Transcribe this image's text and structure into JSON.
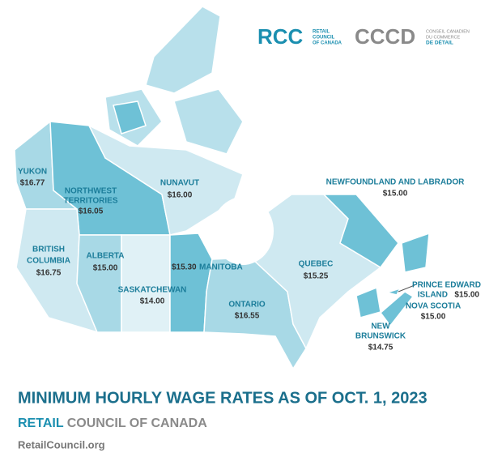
{
  "logos": {
    "rcc": {
      "mark": "RCC",
      "lines": [
        "RETAIL",
        "COUNCIL",
        "OF CANADA"
      ]
    },
    "cccd": {
      "mark": "CCCD",
      "lines": [
        "CONSEIL CANADIEN",
        "DU COMMERCE",
        "DE DÉTAIL"
      ]
    }
  },
  "provinces": [
    {
      "name": [
        "YUKON"
      ],
      "wage": "$16.77"
    },
    {
      "name": [
        "NORTHWEST",
        "TERRITORIES"
      ],
      "wage": "$16.05"
    },
    {
      "name": [
        "NUNAVUT"
      ],
      "wage": "$16.00"
    },
    {
      "name": [
        "NEWFOUNDLAND AND LABRADOR"
      ],
      "wage": "$15.00"
    },
    {
      "name": [
        "BRITISH",
        "COLUMBIA"
      ],
      "wage": "$16.75"
    },
    {
      "name": [
        "ALBERTA"
      ],
      "wage": "$15.00"
    },
    {
      "name": [
        "MANITOBA"
      ],
      "wage": "$15.30"
    },
    {
      "name": [
        "SASKATCHEWAN"
      ],
      "wage": "$14.00"
    },
    {
      "name": [
        "QUEBEC"
      ],
      "wage": "$15.25"
    },
    {
      "name": [
        "ONTARIO"
      ],
      "wage": "$16.55"
    },
    {
      "name": [
        "PRINCE EDWARD",
        "ISLAND"
      ],
      "wage": "$15.00"
    },
    {
      "name": [
        "NOVA SCOTIA"
      ],
      "wage": "$15.00"
    },
    {
      "name": [
        "NEW",
        "BRUNSWICK"
      ],
      "wage": "$14.75"
    }
  ],
  "title": "MINIMUM HOURLY WAGE RATES AS OF OCT. 1, 2023",
  "subtitle": {
    "accent": "RETAIL",
    "rest": "COUNCIL OF CANADA"
  },
  "url": "RetailCouncil.org"
}
